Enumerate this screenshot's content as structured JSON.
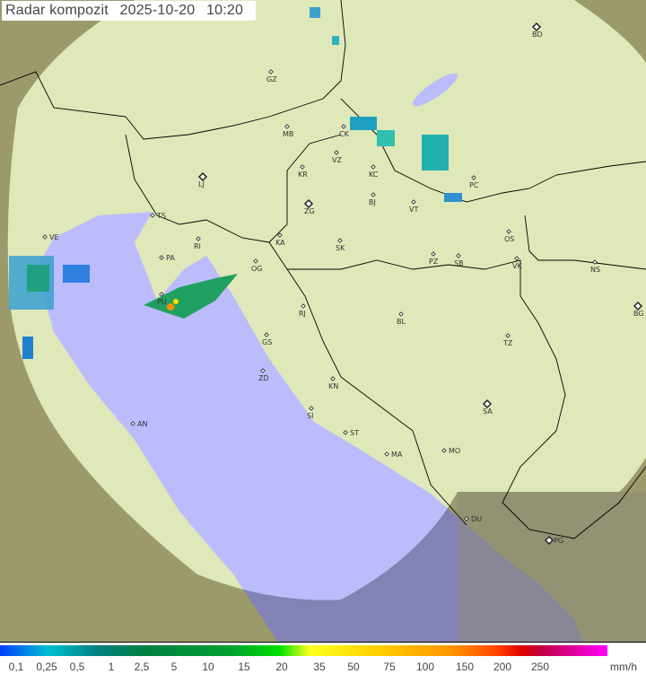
{
  "header": {
    "title": "Radar kompozit",
    "date": "2025-10-20",
    "time": "10:20"
  },
  "legend": {
    "unit": "mm/h",
    "ticks": [
      "0,1",
      "0,25",
      "0,5",
      "1",
      "2,5",
      "5",
      "10",
      "15",
      "20",
      "35",
      "50",
      "75",
      "100",
      "150",
      "200",
      "250"
    ]
  },
  "colors": {
    "land_covered": "#dfe8b8",
    "land_outside": "#9c9a6c",
    "sea_covered": "#bcbcfc",
    "sea_outside": "#8282b4"
  },
  "cities": [
    {
      "code": "BD",
      "capital": true
    },
    {
      "code": "GZ"
    },
    {
      "code": "MB"
    },
    {
      "code": "CK"
    },
    {
      "code": "VZ"
    },
    {
      "code": "KR"
    },
    {
      "code": "KC"
    },
    {
      "code": "PC"
    },
    {
      "code": "LJ",
      "capital": true
    },
    {
      "code": "BJ"
    },
    {
      "code": "ZG",
      "capital": true
    },
    {
      "code": "VT"
    },
    {
      "code": "TS"
    },
    {
      "code": "VE"
    },
    {
      "code": "RI"
    },
    {
      "code": "KA"
    },
    {
      "code": "SK"
    },
    {
      "code": "OS"
    },
    {
      "code": "PA"
    },
    {
      "code": "OG"
    },
    {
      "code": "PZ"
    },
    {
      "code": "SB"
    },
    {
      "code": "VK"
    },
    {
      "code": "NS"
    },
    {
      "code": "PU"
    },
    {
      "code": "BG",
      "capital": true
    },
    {
      "code": "RJ"
    },
    {
      "code": "BL"
    },
    {
      "code": "GS"
    },
    {
      "code": "TZ"
    },
    {
      "code": "ZD"
    },
    {
      "code": "KN"
    },
    {
      "code": "SA",
      "capital": true
    },
    {
      "code": "SI"
    },
    {
      "code": "AN"
    },
    {
      "code": "ST"
    },
    {
      "code": "MA"
    },
    {
      "code": "MO"
    },
    {
      "code": "DU"
    },
    {
      "code": "PG",
      "capital": true
    }
  ]
}
